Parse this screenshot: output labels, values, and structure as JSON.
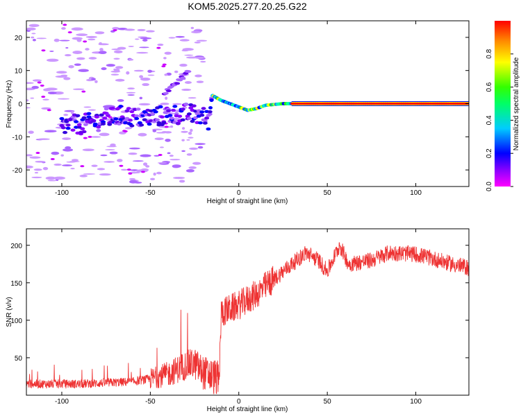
{
  "title": "KOM5.2025.277.20.25.G22",
  "colorbar": {
    "label": "Normalized spectral amplitude",
    "ticks": [
      "0.0",
      "0.2",
      "0.4",
      "0.6",
      "0.8"
    ],
    "range": [
      0,
      1
    ]
  },
  "chart_data": [
    {
      "type": "heatmap",
      "name": "spectrogram",
      "xlabel": "Height of straight line (km)",
      "ylabel": "Frequency (Hz)",
      "xlim": [
        -120,
        130
      ],
      "ylim": [
        -25,
        25
      ],
      "xticks": [
        -100,
        -50,
        0,
        50,
        100
      ],
      "yticks": [
        -20,
        -10,
        0,
        10,
        20
      ],
      "ridge": [
        {
          "x": -95,
          "y": -6.5
        },
        {
          "x": -85,
          "y": -6
        },
        {
          "x": -75,
          "y": -4.5
        },
        {
          "x": -65,
          "y": -3.5
        },
        {
          "x": -55,
          "y": -4.5
        },
        {
          "x": -48,
          "y": -4
        },
        {
          "x": -40,
          "y": -3.5
        },
        {
          "x": -30,
          "y": -3
        },
        {
          "x": -22,
          "y": -3.5
        },
        {
          "x": -17,
          "y": -5
        },
        {
          "x": -15,
          "y": 2.5
        },
        {
          "x": -10,
          "y": 1
        },
        {
          "x": -5,
          "y": 0
        },
        {
          "x": 0,
          "y": -1
        },
        {
          "x": 5,
          "y": -2
        },
        {
          "x": 10,
          "y": -1.5
        },
        {
          "x": 15,
          "y": -0.5
        },
        {
          "x": 25,
          "y": 0
        },
        {
          "x": 50,
          "y": 0
        },
        {
          "x": 130,
          "y": 0
        }
      ]
    },
    {
      "type": "line",
      "name": "snr",
      "xlabel": "Height of straight line (km)",
      "ylabel": "SNR (v/v)",
      "xlim": [
        -120,
        130
      ],
      "ylim": [
        0,
        222
      ],
      "xticks": [
        -100,
        -50,
        0,
        50,
        100
      ],
      "yticks": [
        50,
        100,
        150,
        200
      ],
      "color": "#ee3333",
      "envelope": [
        {
          "x": -120,
          "y": 15
        },
        {
          "x": -90,
          "y": 15
        },
        {
          "x": -60,
          "y": 18
        },
        {
          "x": -50,
          "y": 22
        },
        {
          "x": -40,
          "y": 28
        },
        {
          "x": -30,
          "y": 40
        },
        {
          "x": -25,
          "y": 42
        },
        {
          "x": -20,
          "y": 30
        },
        {
          "x": -11,
          "y": 22
        },
        {
          "x": -10,
          "y": 110
        },
        {
          "x": 0,
          "y": 120
        },
        {
          "x": 10,
          "y": 135
        },
        {
          "x": 20,
          "y": 155
        },
        {
          "x": 30,
          "y": 175
        },
        {
          "x": 38,
          "y": 190
        },
        {
          "x": 45,
          "y": 180
        },
        {
          "x": 50,
          "y": 165
        },
        {
          "x": 57,
          "y": 200
        },
        {
          "x": 62,
          "y": 175
        },
        {
          "x": 75,
          "y": 180
        },
        {
          "x": 85,
          "y": 190
        },
        {
          "x": 100,
          "y": 188
        },
        {
          "x": 110,
          "y": 182
        },
        {
          "x": 120,
          "y": 175
        },
        {
          "x": 130,
          "y": 170
        }
      ]
    }
  ]
}
